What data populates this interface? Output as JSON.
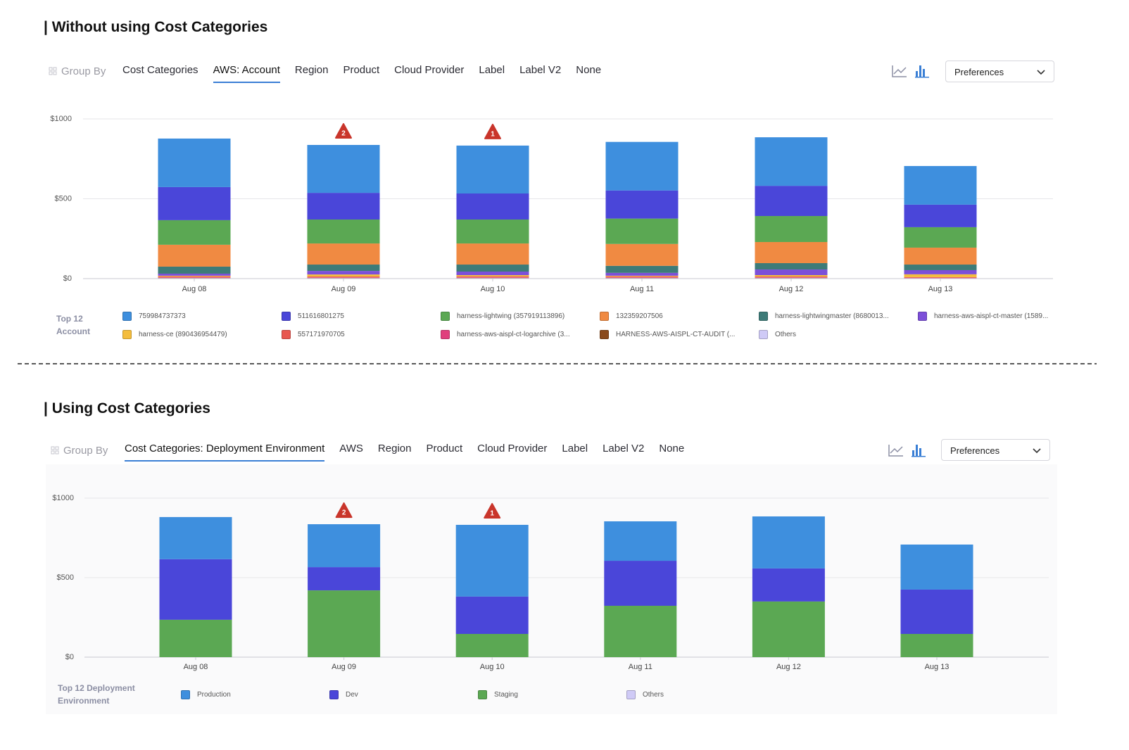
{
  "panels": [
    {
      "heading": "| Without using Cost Categories",
      "group_by": "Group By",
      "tabs": [
        "Cost Categories",
        "AWS: Account",
        "Region",
        "Product",
        "Cloud Provider",
        "Label",
        "Label V2",
        "None"
      ],
      "active_tab": 1,
      "preferences": "Preferences"
    },
    {
      "heading": "| Using Cost Categories",
      "group_by": "Group By",
      "tabs": [
        "Cost Categories: Deployment Environment",
        "AWS",
        "Region",
        "Product",
        "Cloud Provider",
        "Label",
        "Label V2",
        "None"
      ],
      "active_tab": 0,
      "preferences": "Preferences"
    }
  ],
  "chart_data": [
    {
      "type": "stacked_bar",
      "legend_title": "Top 12 Account",
      "categories": [
        "Aug 08",
        "Aug 09",
        "Aug 10",
        "Aug 11",
        "Aug 12",
        "Aug 13"
      ],
      "ylim": [
        0,
        1000
      ],
      "yticks": [
        {
          "value": 0,
          "label": "$0"
        },
        {
          "value": 500,
          "label": "$500"
        },
        {
          "value": 1000,
          "label": "$1000"
        }
      ],
      "grid": true,
      "annotations": [
        {
          "category": "Aug 09",
          "label": "2"
        },
        {
          "category": "Aug 10",
          "label": "1"
        }
      ],
      "series": [
        {
          "name": "759984737373",
          "color": "#3e8fde",
          "values": [
            304,
            300,
            300,
            304,
            304,
            242
          ]
        },
        {
          "name": "511616801275",
          "color": "#4a46d9",
          "values": [
            207,
            167,
            163,
            176,
            189,
            141
          ]
        },
        {
          "name": "harness-lightwing (357919113896)",
          "color": "#5ba853",
          "values": [
            154,
            150,
            150,
            159,
            163,
            128
          ]
        },
        {
          "name": "132359207506",
          "color": "#f08a42",
          "values": [
            137,
            132,
            132,
            137,
            132,
            106
          ]
        },
        {
          "name": "harness-lightwingmaster (8680013...",
          "color": "#3d7b78",
          "values": [
            44,
            40,
            44,
            44,
            40,
            35
          ]
        },
        {
          "name": "harness-aws-aispl-ct-master (1589...",
          "color": "#7c4fd9",
          "values": [
            13,
            22,
            22,
            18,
            35,
            26
          ]
        },
        {
          "name": "harness-ce (890436954479)",
          "color": "#f4bd3d",
          "values": [
            4,
            13,
            8,
            4,
            9,
            18
          ]
        },
        {
          "name": "557171970705",
          "color": "#e8574f",
          "values": [
            6,
            5,
            6,
            6,
            5,
            4
          ]
        },
        {
          "name": "harness-aws-aispl-ct-logarchive (3...",
          "color": "#e0407d",
          "values": [
            3,
            3,
            3,
            3,
            3,
            2
          ]
        },
        {
          "name": "HARNESS-AWS-AISPL-CT-AUDIT (...",
          "color": "#8a4a1c",
          "values": [
            2,
            2,
            2,
            2,
            2,
            1
          ]
        },
        {
          "name": "Others",
          "color": "#cfcaf6",
          "values": [
            3,
            3,
            3,
            3,
            3,
            2
          ]
        }
      ]
    },
    {
      "type": "stacked_bar",
      "legend_title": "Top 12 Deployment Environment",
      "categories": [
        "Aug 08",
        "Aug 09",
        "Aug 10",
        "Aug 11",
        "Aug 12",
        "Aug 13"
      ],
      "ylim": [
        0,
        1000
      ],
      "yticks": [
        {
          "value": 0,
          "label": "$0"
        },
        {
          "value": 500,
          "label": "$500"
        },
        {
          "value": 1000,
          "label": "$1000"
        }
      ],
      "grid": true,
      "annotations": [
        {
          "category": "Aug 09",
          "label": "2"
        },
        {
          "category": "Aug 10",
          "label": "1"
        }
      ],
      "series": [
        {
          "name": "Production",
          "color": "#3e8fde",
          "values": [
            265,
            270,
            451,
            248,
            327,
            283
          ]
        },
        {
          "name": "Dev",
          "color": "#4a46d9",
          "values": [
            381,
            146,
            235,
            283,
            208,
            279
          ]
        },
        {
          "name": "Staging",
          "color": "#5ba853",
          "values": [
            235,
            420,
            146,
            323,
            350,
            146
          ]
        },
        {
          "name": "Others",
          "color": "#cfcaf6",
          "values": [
            0,
            0,
            0,
            0,
            0,
            0
          ]
        }
      ]
    }
  ]
}
